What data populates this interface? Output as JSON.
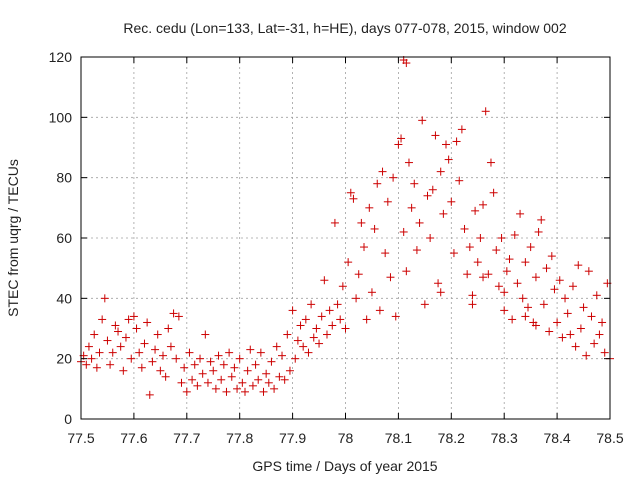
{
  "chart_data": {
    "type": "scatter",
    "title": "Rec. cedu (Lon=133, Lat=-31, h=HE), days 077-078, 2015, window 002",
    "xlabel": "GPS time / Days of year 2015",
    "ylabel": "STEC from uqrg / TECUs",
    "xlim": [
      77.5,
      78.5
    ],
    "ylim": [
      0,
      120
    ],
    "x_ticks": [
      77.5,
      77.6,
      77.7,
      77.8,
      77.9,
      78.0,
      78.1,
      78.2,
      78.3,
      78.4,
      78.5
    ],
    "x_tick_labels": [
      "77.5",
      "77.6",
      "77.7",
      "77.8",
      "77.9",
      "78",
      "78.1",
      "78.2",
      "78.3",
      "78.4",
      "78.5"
    ],
    "y_ticks": [
      0,
      20,
      40,
      60,
      80,
      100,
      120
    ],
    "y_tick_labels": [
      "0",
      "20",
      "40",
      "60",
      "80",
      "100",
      "120"
    ],
    "grid": true,
    "legend": "none",
    "marker": "plus",
    "color": "#cc0000",
    "points": [
      [
        77.5,
        19
      ],
      [
        77.505,
        21
      ],
      [
        77.51,
        18
      ],
      [
        77.515,
        24
      ],
      [
        77.52,
        20
      ],
      [
        77.525,
        28
      ],
      [
        77.53,
        17
      ],
      [
        77.535,
        22
      ],
      [
        77.54,
        33
      ],
      [
        77.545,
        40
      ],
      [
        77.55,
        26
      ],
      [
        77.555,
        18
      ],
      [
        77.56,
        22
      ],
      [
        77.565,
        31
      ],
      [
        77.57,
        29
      ],
      [
        77.575,
        24
      ],
      [
        77.58,
        16
      ],
      [
        77.585,
        27
      ],
      [
        77.59,
        33
      ],
      [
        77.595,
        20
      ],
      [
        77.6,
        34
      ],
      [
        77.605,
        30
      ],
      [
        77.61,
        22
      ],
      [
        77.615,
        17
      ],
      [
        77.62,
        25
      ],
      [
        77.625,
        32
      ],
      [
        77.63,
        8
      ],
      [
        77.635,
        19
      ],
      [
        77.64,
        23
      ],
      [
        77.645,
        28
      ],
      [
        77.65,
        16
      ],
      [
        77.655,
        21
      ],
      [
        77.66,
        14
      ],
      [
        77.665,
        30
      ],
      [
        77.67,
        24
      ],
      [
        77.675,
        35
      ],
      [
        77.68,
        20
      ],
      [
        77.685,
        34
      ],
      [
        77.69,
        12
      ],
      [
        77.695,
        17
      ],
      [
        77.7,
        9
      ],
      [
        77.705,
        22
      ],
      [
        77.71,
        13
      ],
      [
        77.715,
        18
      ],
      [
        77.72,
        11
      ],
      [
        77.725,
        20
      ],
      [
        77.73,
        15
      ],
      [
        77.735,
        28
      ],
      [
        77.74,
        12
      ],
      [
        77.745,
        19
      ],
      [
        77.75,
        16
      ],
      [
        77.755,
        10
      ],
      [
        77.76,
        21
      ],
      [
        77.765,
        13
      ],
      [
        77.77,
        18
      ],
      [
        77.775,
        9
      ],
      [
        77.78,
        22
      ],
      [
        77.785,
        14
      ],
      [
        77.79,
        17
      ],
      [
        77.795,
        10
      ],
      [
        77.8,
        20
      ],
      [
        77.805,
        12
      ],
      [
        77.81,
        9
      ],
      [
        77.815,
        16
      ],
      [
        77.82,
        23
      ],
      [
        77.825,
        11
      ],
      [
        77.83,
        18
      ],
      [
        77.835,
        13
      ],
      [
        77.84,
        22
      ],
      [
        77.845,
        9
      ],
      [
        77.85,
        15
      ],
      [
        77.855,
        12
      ],
      [
        77.86,
        19
      ],
      [
        77.865,
        10
      ],
      [
        77.87,
        24
      ],
      [
        77.875,
        14
      ],
      [
        77.88,
        21
      ],
      [
        77.885,
        13
      ],
      [
        77.89,
        28
      ],
      [
        77.895,
        16
      ],
      [
        77.9,
        36
      ],
      [
        77.905,
        20
      ],
      [
        77.91,
        26
      ],
      [
        77.915,
        31
      ],
      [
        77.92,
        24
      ],
      [
        77.925,
        33
      ],
      [
        77.93,
        22
      ],
      [
        77.935,
        38
      ],
      [
        77.94,
        27
      ],
      [
        77.945,
        30
      ],
      [
        77.95,
        25
      ],
      [
        77.955,
        34
      ],
      [
        77.96,
        46
      ],
      [
        77.965,
        28
      ],
      [
        77.97,
        36
      ],
      [
        77.975,
        31
      ],
      [
        77.98,
        65
      ],
      [
        77.985,
        38
      ],
      [
        77.99,
        33
      ],
      [
        77.995,
        44
      ],
      [
        78.0,
        30
      ],
      [
        78.005,
        52
      ],
      [
        78.01,
        75
      ],
      [
        78.015,
        73
      ],
      [
        78.02,
        40
      ],
      [
        78.025,
        48
      ],
      [
        78.03,
        65
      ],
      [
        78.035,
        57
      ],
      [
        78.04,
        33
      ],
      [
        78.045,
        70
      ],
      [
        78.05,
        42
      ],
      [
        78.055,
        63
      ],
      [
        78.06,
        78
      ],
      [
        78.065,
        36
      ],
      [
        78.07,
        82
      ],
      [
        78.075,
        55
      ],
      [
        78.08,
        72
      ],
      [
        78.085,
        47
      ],
      [
        78.09,
        80
      ],
      [
        78.095,
        34
      ],
      [
        78.1,
        91
      ],
      [
        78.105,
        93
      ],
      [
        78.11,
        62
      ],
      [
        78.115,
        49
      ],
      [
        78.12,
        85
      ],
      [
        78.125,
        70
      ],
      [
        78.13,
        78
      ],
      [
        78.135,
        56
      ],
      [
        78.14,
        65
      ],
      [
        78.145,
        99
      ],
      [
        78.15,
        38
      ],
      [
        78.155,
        74
      ],
      [
        78.16,
        60
      ],
      [
        78.165,
        76
      ],
      [
        78.17,
        94
      ],
      [
        78.175,
        45
      ],
      [
        78.18,
        82
      ],
      [
        78.185,
        68
      ],
      [
        78.19,
        91
      ],
      [
        78.195,
        86
      ],
      [
        78.2,
        72
      ],
      [
        78.205,
        55
      ],
      [
        78.21,
        92
      ],
      [
        78.215,
        79
      ],
      [
        78.22,
        96
      ],
      [
        78.225,
        63
      ],
      [
        78.23,
        48
      ],
      [
        78.235,
        57
      ],
      [
        78.24,
        41
      ],
      [
        78.245,
        69
      ],
      [
        78.25,
        52
      ],
      [
        78.255,
        60
      ],
      [
        78.26,
        71
      ],
      [
        78.265,
        102
      ],
      [
        78.27,
        48
      ],
      [
        78.275,
        85
      ],
      [
        78.28,
        75
      ],
      [
        78.285,
        56
      ],
      [
        78.29,
        44
      ],
      [
        78.295,
        60
      ],
      [
        78.3,
        36
      ],
      [
        78.305,
        49
      ],
      [
        78.31,
        53
      ],
      [
        78.315,
        33
      ],
      [
        78.32,
        61
      ],
      [
        78.325,
        45
      ],
      [
        78.33,
        68
      ],
      [
        78.335,
        40
      ],
      [
        78.34,
        52
      ],
      [
        78.345,
        37
      ],
      [
        78.35,
        57
      ],
      [
        78.355,
        32
      ],
      [
        78.36,
        47
      ],
      [
        78.365,
        62
      ],
      [
        78.37,
        66
      ],
      [
        78.375,
        38
      ],
      [
        78.38,
        50
      ],
      [
        78.385,
        29
      ],
      [
        78.39,
        54
      ],
      [
        78.395,
        43
      ],
      [
        78.4,
        32
      ],
      [
        78.405,
        46
      ],
      [
        78.41,
        27
      ],
      [
        78.415,
        40
      ],
      [
        78.42,
        35
      ],
      [
        78.425,
        28
      ],
      [
        78.43,
        44
      ],
      [
        78.435,
        24
      ],
      [
        78.44,
        51
      ],
      [
        78.445,
        30
      ],
      [
        78.45,
        37
      ],
      [
        78.455,
        21
      ],
      [
        78.46,
        49
      ],
      [
        78.465,
        34
      ],
      [
        78.47,
        25
      ],
      [
        78.475,
        41
      ],
      [
        78.48,
        28
      ],
      [
        78.485,
        32
      ],
      [
        78.49,
        22
      ],
      [
        78.495,
        45
      ],
      [
        78.5,
        20
      ],
      [
        78.11,
        119
      ],
      [
        78.115,
        118
      ],
      [
        78.18,
        42
      ],
      [
        78.24,
        38
      ],
      [
        78.26,
        47
      ],
      [
        78.3,
        42
      ],
      [
        78.34,
        34
      ],
      [
        78.36,
        31
      ]
    ]
  }
}
